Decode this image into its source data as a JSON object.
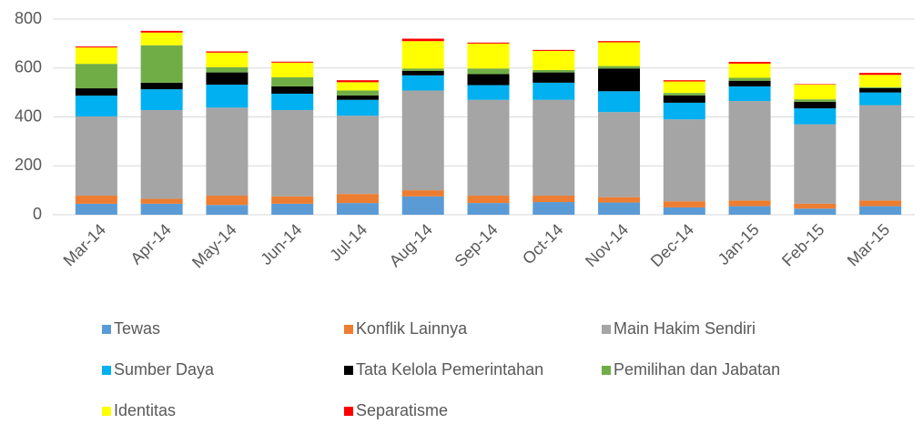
{
  "chart_data": {
    "type": "stacked_bar",
    "categories": [
      "Mar-14",
      "Apr-14",
      "May-14",
      "Jun-14",
      "Jul-14",
      "Aug-14",
      "Sep-14",
      "Oct-14",
      "Nov-14",
      "Dec-14",
      "Jan-15",
      "Feb-15",
      "Mar-15"
    ],
    "series": [
      {
        "name": "Tewas",
        "color": "#5b9bd5",
        "values": [
          45,
          45,
          40,
          45,
          48,
          75,
          48,
          52,
          50,
          30,
          35,
          25,
          35
        ]
      },
      {
        "name": "Konflik Lainnya",
        "color": "#ed7d31",
        "values": [
          33,
          20,
          38,
          30,
          37,
          25,
          30,
          26,
          22,
          25,
          23,
          20,
          23
        ]
      },
      {
        "name": "Main Hakim Sendiri",
        "color": "#a5a5a5",
        "values": [
          324,
          363,
          360,
          353,
          320,
          408,
          392,
          392,
          348,
          335,
          407,
          325,
          390
        ]
      },
      {
        "name": "Sumber Daya",
        "color": "#00b0f0",
        "values": [
          85,
          85,
          94,
          67,
          65,
          62,
          60,
          70,
          85,
          68,
          60,
          65,
          52
        ]
      },
      {
        "name": "Tata Kelola Pemerintahan",
        "color": "#000000",
        "values": [
          30,
          27,
          50,
          30,
          18,
          18,
          45,
          42,
          93,
          30,
          23,
          27,
          18
        ]
      },
      {
        "name": "Pemilihan dan Jabatan",
        "color": "#70ad47",
        "values": [
          100,
          153,
          21,
          37,
          20,
          10,
          23,
          10,
          10,
          10,
          12,
          10,
          4
        ]
      },
      {
        "name": "Identitas",
        "color": "#ffff00",
        "values": [
          67,
          52,
          60,
          60,
          34,
          112,
          102,
          78,
          97,
          47,
          58,
          60,
          50
        ]
      },
      {
        "name": "Separatisme",
        "color": "#ff0000",
        "values": [
          4,
          7,
          5,
          4,
          8,
          10,
          4,
          4,
          5,
          5,
          7,
          2,
          8
        ]
      }
    ],
    "ylim": [
      0,
      800
    ],
    "yticks": [
      0,
      200,
      400,
      600,
      800
    ],
    "grid": true
  }
}
